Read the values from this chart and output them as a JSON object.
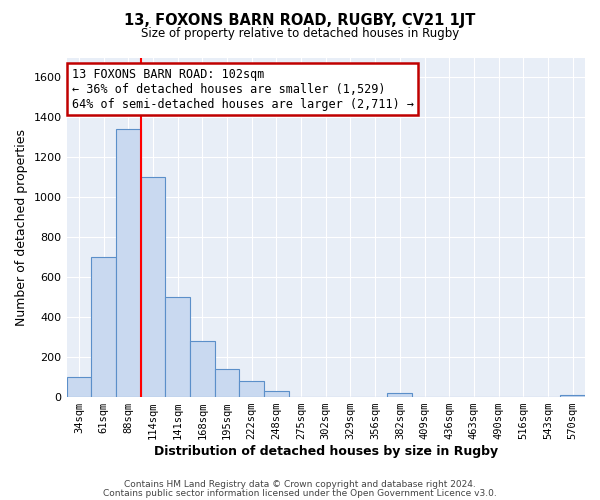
{
  "title": "13, FOXONS BARN ROAD, RUGBY, CV21 1JT",
  "subtitle": "Size of property relative to detached houses in Rugby",
  "xlabel": "Distribution of detached houses by size in Rugby",
  "ylabel": "Number of detached properties",
  "categories": [
    "34sqm",
    "61sqm",
    "88sqm",
    "114sqm",
    "141sqm",
    "168sqm",
    "195sqm",
    "222sqm",
    "248sqm",
    "275sqm",
    "302sqm",
    "329sqm",
    "356sqm",
    "382sqm",
    "409sqm",
    "436sqm",
    "463sqm",
    "490sqm",
    "516sqm",
    "543sqm",
    "570sqm"
  ],
  "values": [
    100,
    700,
    1340,
    1100,
    500,
    280,
    140,
    80,
    30,
    0,
    0,
    0,
    0,
    20,
    0,
    0,
    0,
    0,
    0,
    0,
    10
  ],
  "bar_color": "#c9d9f0",
  "bar_edge_color": "#5b8fc9",
  "red_line_index": 2,
  "annotation_line1": "13 FOXONS BARN ROAD: 102sqm",
  "annotation_line2": "← 36% of detached houses are smaller (1,529)",
  "annotation_line3": "64% of semi-detached houses are larger (2,711) →",
  "annotation_box_color": "#ffffff",
  "annotation_box_edge": "#c00000",
  "ylim": [
    0,
    1700
  ],
  "yticks": [
    0,
    200,
    400,
    600,
    800,
    1000,
    1200,
    1400,
    1600
  ],
  "footer1": "Contains HM Land Registry data © Crown copyright and database right 2024.",
  "footer2": "Contains public sector information licensed under the Open Government Licence v3.0.",
  "fig_bg_color": "#ffffff",
  "plot_bg_color": "#e8eef7"
}
